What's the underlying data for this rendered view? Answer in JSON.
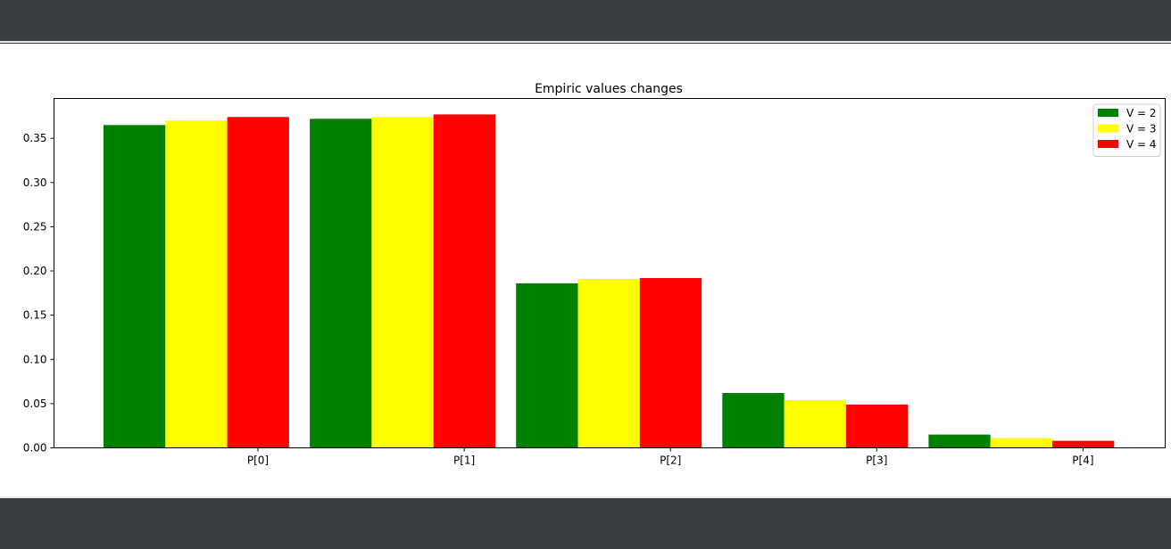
{
  "figure": {
    "background": "#ffffff",
    "frame_color": "#3a3d41"
  },
  "chart_data": {
    "type": "bar",
    "title": "Empiric values changes",
    "xlabel": "",
    "ylabel": "",
    "categories": [
      "P[0]",
      "P[1]",
      "P[2]",
      "P[3]",
      "P[4]"
    ],
    "series": [
      {
        "name": "V = 2",
        "color": "#008000",
        "values": [
          0.365,
          0.372,
          0.186,
          0.062,
          0.015
        ]
      },
      {
        "name": "V = 3",
        "color": "#ffff00",
        "values": [
          0.37,
          0.374,
          0.191,
          0.054,
          0.011
        ]
      },
      {
        "name": "V = 4",
        "color": "#ff0000",
        "values": [
          0.374,
          0.377,
          0.192,
          0.049,
          0.008
        ]
      }
    ],
    "ylim": [
      0,
      0.395
    ],
    "yticks": [
      "0.00",
      "0.05",
      "0.10",
      "0.15",
      "0.20",
      "0.25",
      "0.30",
      "0.35"
    ],
    "grid": false,
    "legend_position": "top-right"
  }
}
